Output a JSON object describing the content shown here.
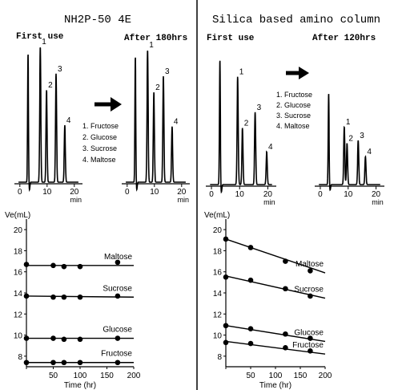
{
  "chart_data": [
    {
      "id": "nh2p_chrom_first",
      "type": "chromatogram",
      "panel_title": "NH2P-50 4E",
      "title": "First use",
      "x_unit": "min",
      "xlim": [
        -2,
        23
      ],
      "x_ticks": [
        0,
        10,
        20
      ],
      "injection_time": 3.0,
      "peaks": [
        {
          "label": "1",
          "x": 7.5,
          "height": 1.0
        },
        {
          "label": "2",
          "x": 9.8,
          "height": 0.68
        },
        {
          "label": "3",
          "x": 13.3,
          "height": 0.8
        },
        {
          "label": "4",
          "x": 16.5,
          "height": 0.42
        }
      ],
      "legend": [
        "1. Fructose",
        "2. Glucose",
        "3. Sucrose",
        "4. Maltose"
      ]
    },
    {
      "id": "nh2p_chrom_after",
      "type": "chromatogram",
      "title": "After 180hrs",
      "x_unit": "min",
      "xlim": [
        -2,
        23
      ],
      "x_ticks": [
        0,
        10,
        20
      ],
      "injection_time": 3.0,
      "peaks": [
        {
          "label": "1",
          "x": 7.5,
          "height": 1.0
        },
        {
          "label": "2",
          "x": 9.8,
          "height": 0.68
        },
        {
          "label": "3",
          "x": 13.3,
          "height": 0.8
        },
        {
          "label": "4",
          "x": 16.5,
          "height": 0.42
        }
      ]
    },
    {
      "id": "silica_chrom_first",
      "type": "chromatogram",
      "panel_title": "Silica based amino column",
      "title": "First use",
      "x_unit": "min",
      "xlim": [
        -2,
        23
      ],
      "x_ticks": [
        0,
        10,
        20
      ],
      "injection_time": 3.0,
      "peaks": [
        {
          "label": "1",
          "x": 9.3,
          "height": 0.82
        },
        {
          "label": "2",
          "x": 11.0,
          "height": 0.43
        },
        {
          "label": "3",
          "x": 15.5,
          "height": 0.55
        },
        {
          "label": "4",
          "x": 19.6,
          "height": 0.25
        }
      ],
      "legend": [
        "1. Fructose",
        "2. Glucose",
        "3. Sucrose",
        "4. Maltose"
      ]
    },
    {
      "id": "silica_chrom_after",
      "type": "chromatogram",
      "title": "After 120hrs",
      "x_unit": "min",
      "xlim": [
        -2,
        23
      ],
      "x_ticks": [
        0,
        10,
        20
      ],
      "injection_time": 3.0,
      "peaks": [
        {
          "label": "1",
          "x": 8.6,
          "height": 0.6
        },
        {
          "label": "2",
          "x": 9.6,
          "height": 0.43
        },
        {
          "label": "3",
          "x": 13.6,
          "height": 0.46
        },
        {
          "label": "4",
          "x": 16.2,
          "height": 0.29
        }
      ]
    },
    {
      "id": "nh2p_ve",
      "type": "scatter",
      "ylabel": "Ve(mL)",
      "xlabel": "Time (hr)",
      "xlim": [
        0,
        200
      ],
      "ylim": [
        7,
        21
      ],
      "x_ticks": [
        0,
        50,
        100,
        150,
        200
      ],
      "y_ticks": [
        8,
        10,
        12,
        14,
        16,
        18,
        20
      ],
      "series": [
        {
          "name": "Maltose",
          "x": [
            0,
            50,
            70,
            100,
            170
          ],
          "y": [
            16.7,
            16.6,
            16.5,
            16.5,
            16.9
          ],
          "fit": [
            16.6,
            16.6
          ]
        },
        {
          "name": "Sucrose",
          "x": [
            0,
            50,
            70,
            100,
            170
          ],
          "y": [
            13.7,
            13.6,
            13.6,
            13.6,
            13.7
          ],
          "fit": [
            13.7,
            13.6
          ]
        },
        {
          "name": "Glucose",
          "x": [
            0,
            50,
            70,
            100,
            170
          ],
          "y": [
            9.7,
            9.7,
            9.6,
            9.6,
            9.7
          ],
          "fit": [
            9.7,
            9.7
          ]
        },
        {
          "name": "Fructose",
          "x": [
            0,
            50,
            70,
            100,
            170
          ],
          "y": [
            7.4,
            7.4,
            7.4,
            7.4,
            7.4
          ],
          "fit": [
            7.4,
            7.4
          ]
        }
      ]
    },
    {
      "id": "silica_ve",
      "type": "scatter",
      "ylabel": "Ve(mL)",
      "xlabel": "Time (hr)",
      "xlim": [
        0,
        200
      ],
      "ylim": [
        7,
        21
      ],
      "x_ticks": [
        0,
        50,
        100,
        150,
        200
      ],
      "y_ticks": [
        8,
        10,
        12,
        14,
        16,
        18,
        20
      ],
      "series": [
        {
          "name": "Maltose",
          "x": [
            0,
            50,
            120,
            170
          ],
          "y": [
            19.1,
            18.3,
            17.0,
            16.1
          ],
          "fit": [
            19.1,
            15.9
          ]
        },
        {
          "name": "Sucrose",
          "x": [
            0,
            50,
            120,
            170
          ],
          "y": [
            15.5,
            15.2,
            14.4,
            13.7
          ],
          "fit": [
            15.6,
            13.5
          ]
        },
        {
          "name": "Glucose",
          "x": [
            0,
            50,
            120,
            170
          ],
          "y": [
            10.9,
            10.6,
            10.1,
            9.7
          ],
          "fit": [
            10.9,
            9.4
          ]
        },
        {
          "name": "Fructose",
          "x": [
            0,
            50,
            120,
            170
          ],
          "y": [
            9.3,
            9.2,
            8.8,
            8.5
          ],
          "fit": [
            9.4,
            8.2
          ]
        }
      ]
    }
  ]
}
